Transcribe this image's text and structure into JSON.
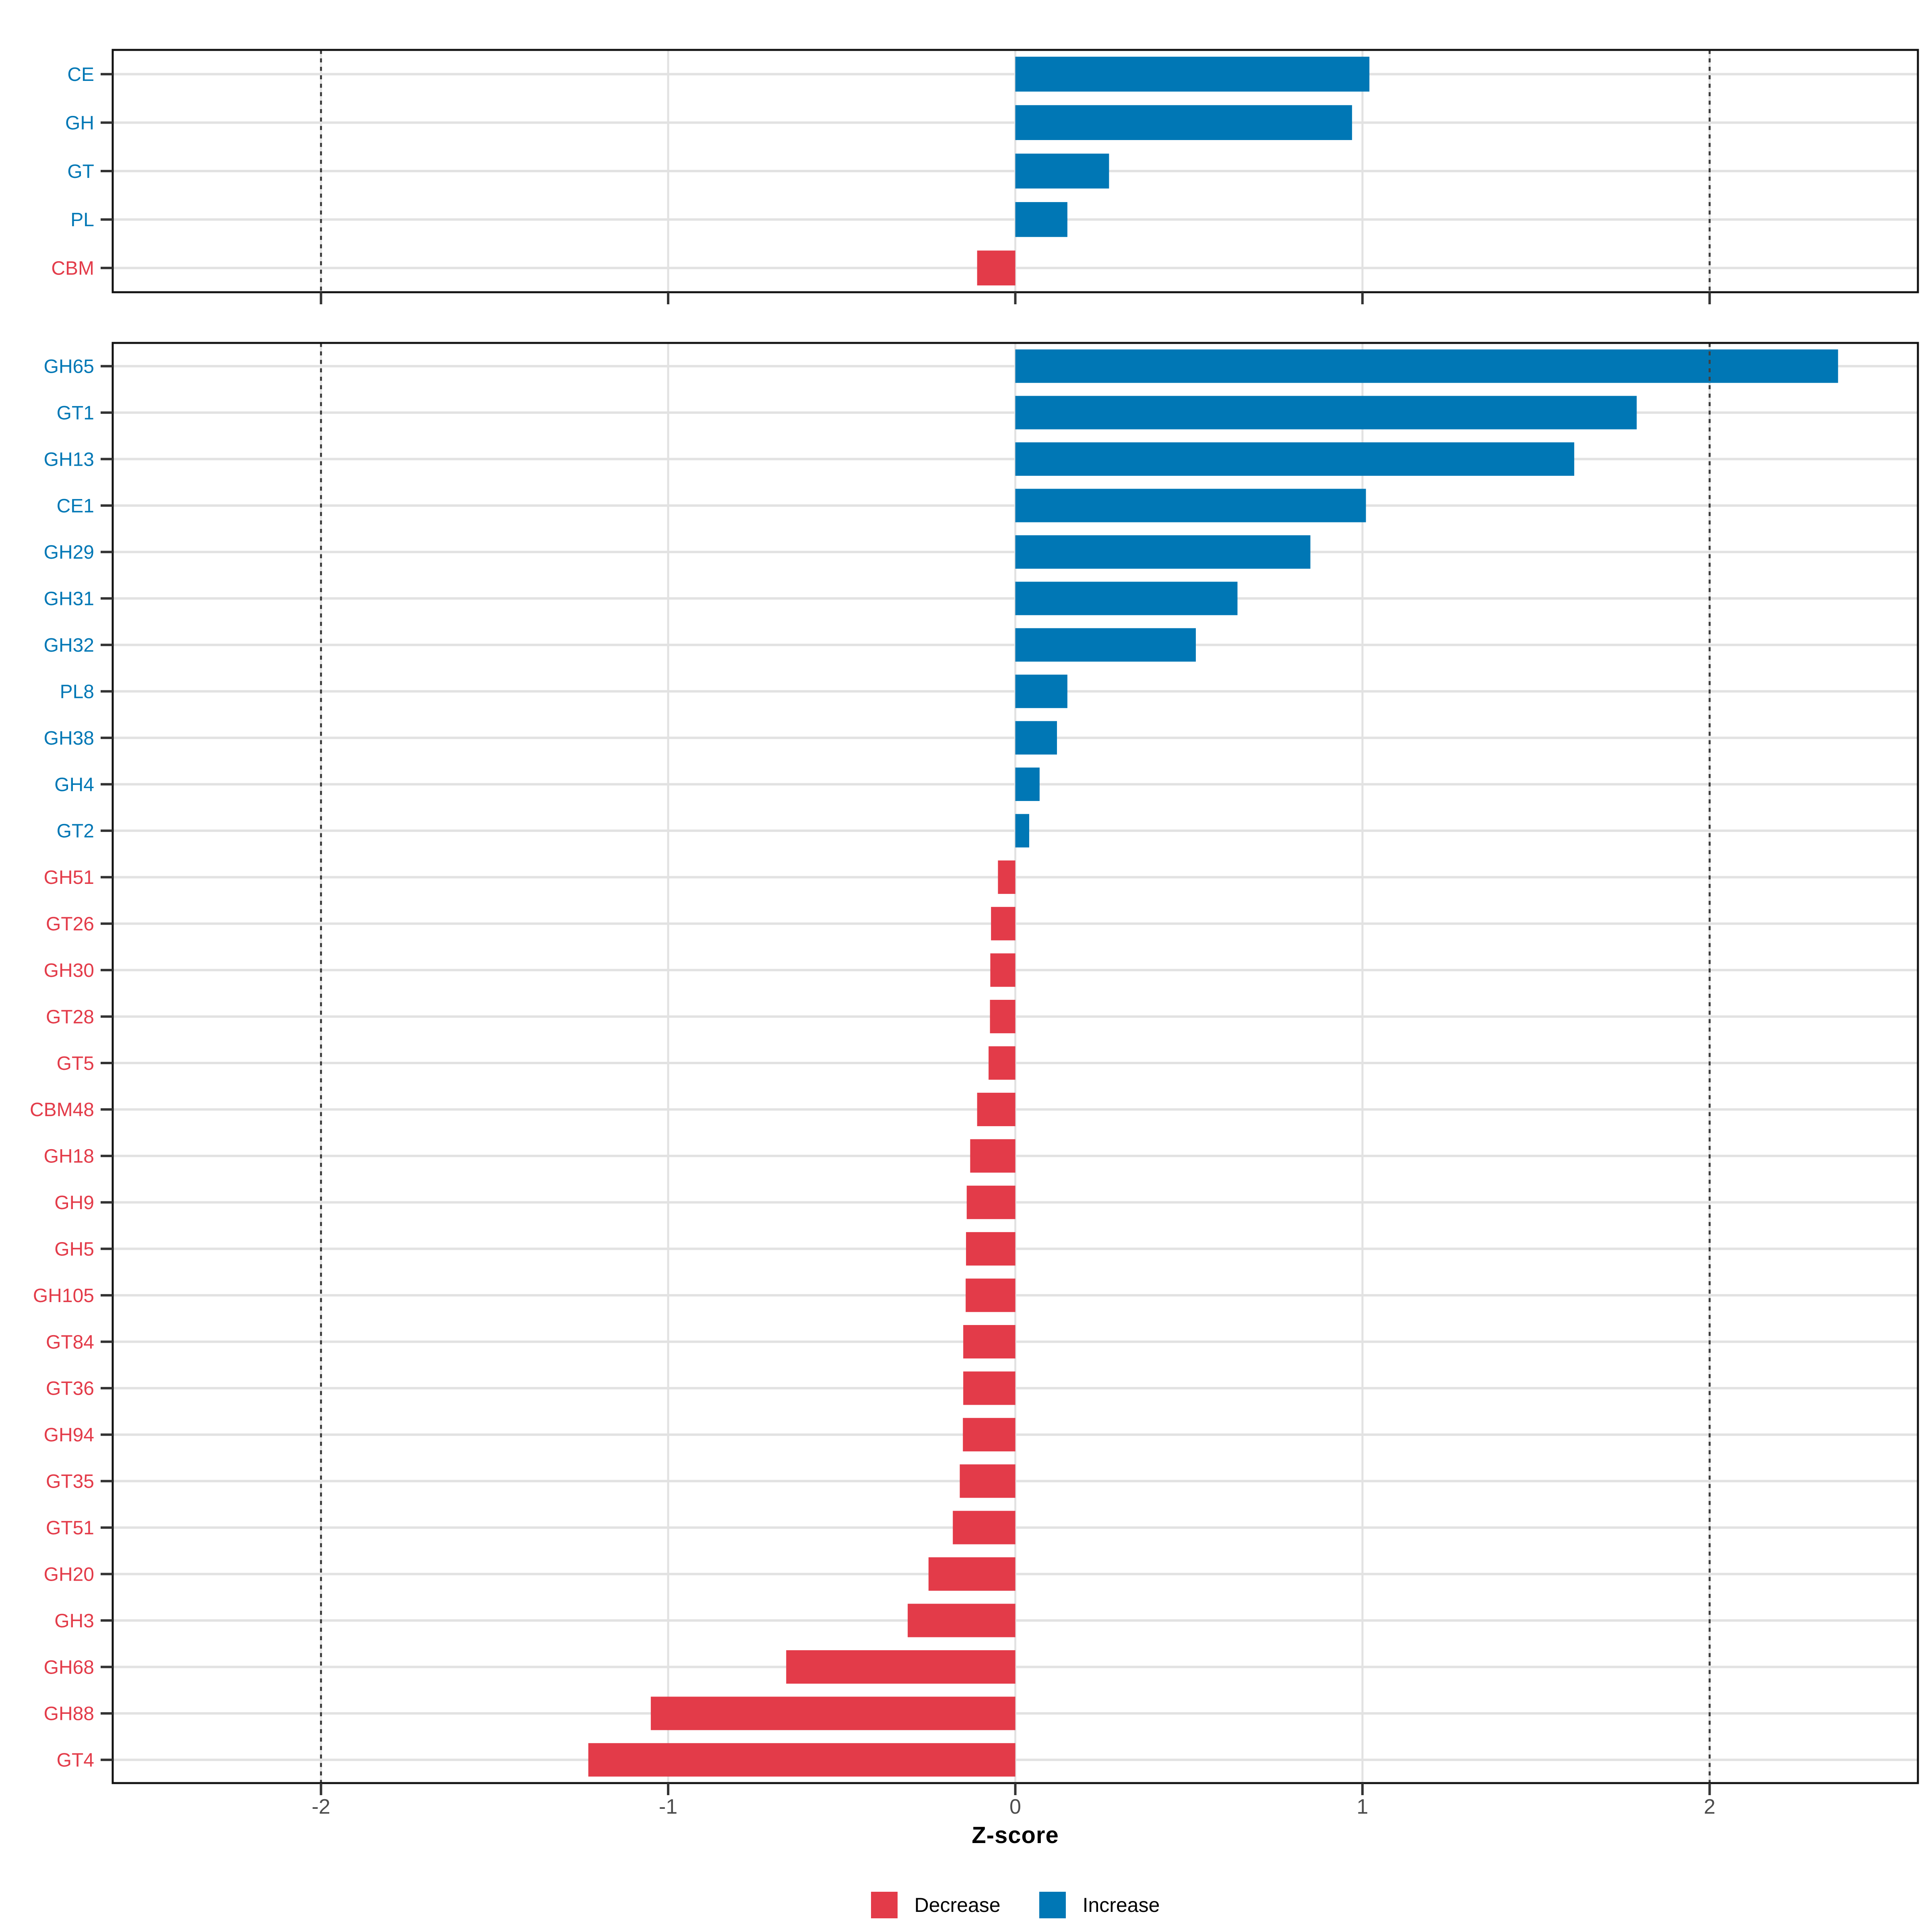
{
  "axis": {
    "xlabel": "Z-score",
    "tick_labels": [
      "-2",
      "-1",
      "0",
      "1",
      "2"
    ],
    "tick_values": [
      -2,
      -1,
      0,
      1,
      2
    ],
    "grid_x": [
      -2,
      -1,
      0,
      1,
      2
    ],
    "reference_x": [
      -2,
      2
    ],
    "xlim": [
      -2.6,
      2.6
    ]
  },
  "legend": {
    "items": [
      {
        "label": "Decrease",
        "color": "#E33B49"
      },
      {
        "label": "Increase",
        "color": "#0077B5"
      }
    ]
  },
  "colors": {
    "increase": "#0077B5",
    "decrease": "#E33B49",
    "grid": "#E2E2E2",
    "reference_line": "#404040",
    "panel_border": "#111111",
    "tick": "#333333",
    "tick_label": "#4D4D4D"
  },
  "chart_data": [
    {
      "type": "bar",
      "orientation": "horizontal",
      "panel": "cazyme-class",
      "categories": [
        "CE",
        "GH",
        "GT",
        "PL",
        "CBM"
      ],
      "values": [
        1.02,
        0.97,
        0.27,
        0.15,
        -0.11
      ],
      "xlabel": "Z-score",
      "xlim": [
        -2.6,
        2.6
      ],
      "grid": true,
      "legend_position": "none"
    },
    {
      "type": "bar",
      "orientation": "horizontal",
      "panel": "cazyme-family",
      "categories": [
        "GH65",
        "GT1",
        "GH13",
        "CE1",
        "GH29",
        "GH31",
        "GH32",
        "PL8",
        "GH38",
        "GH4",
        "GT2",
        "GH51",
        "GT26",
        "GH30",
        "GT28",
        "GT5",
        "CBM48",
        "GH18",
        "GH9",
        "GH5",
        "GH105",
        "GT84",
        "GT36",
        "GH94",
        "GT35",
        "GT51",
        "GH20",
        "GH3",
        "GH68",
        "GH88",
        "GT4"
      ],
      "values": [
        2.37,
        1.79,
        1.61,
        1.01,
        0.85,
        0.64,
        0.52,
        0.15,
        0.12,
        0.07,
        0.04,
        -0.05,
        -0.07,
        -0.072,
        -0.073,
        -0.077,
        -0.11,
        -0.13,
        -0.14,
        -0.142,
        -0.143,
        -0.15,
        -0.15,
        -0.151,
        -0.16,
        -0.18,
        -0.25,
        -0.31,
        -0.66,
        -1.05,
        -1.23
      ],
      "xlabel": "Z-score",
      "xlim": [
        -2.6,
        2.6
      ],
      "grid": true,
      "legend_position": "bottom"
    }
  ]
}
